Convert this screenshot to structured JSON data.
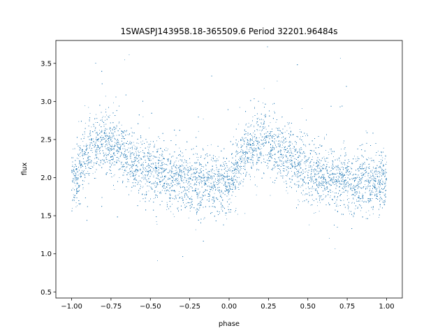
{
  "chart_data": {
    "type": "scatter",
    "title": "1SWASPJ143958.18-365509.6 Period 32201.96484s",
    "xlabel": "phase",
    "ylabel": "flux",
    "xlim": [
      -1.1,
      1.1
    ],
    "ylim": [
      0.42,
      3.8
    ],
    "x_ticks": [
      -1.0,
      -0.75,
      -0.5,
      -0.25,
      0.0,
      0.25,
      0.5,
      0.75,
      1.0
    ],
    "x_tick_labels": [
      "−1.00",
      "−0.75",
      "−0.50",
      "−0.25",
      "0.00",
      "0.25",
      "0.50",
      "0.75",
      "1.00"
    ],
    "y_ticks": [
      0.5,
      1.0,
      1.5,
      2.0,
      2.5,
      3.0,
      3.5
    ],
    "y_tick_labels": [
      "0.5",
      "1.0",
      "1.5",
      "2.0",
      "2.5",
      "3.0",
      "3.5"
    ],
    "grid": false,
    "point_color": "#1f77b4",
    "series": [
      {
        "x": [
          -1.0,
          -0.95,
          -0.9,
          -0.85,
          -0.8,
          -0.75,
          -0.7,
          -0.65,
          -0.6,
          -0.55,
          -0.5,
          -0.45,
          -0.4,
          -0.35,
          -0.3,
          -0.25,
          -0.2,
          -0.15,
          -0.1,
          -0.05,
          0.0,
          0.05,
          0.1,
          0.15,
          0.2,
          0.25,
          0.3,
          0.35,
          0.4,
          0.45,
          0.5,
          0.55,
          0.6,
          0.65,
          0.7,
          0.75,
          0.8,
          0.85,
          0.9,
          0.95,
          1.0
        ],
        "y": [
          1.95,
          2.1,
          2.3,
          2.42,
          2.48,
          2.45,
          2.38,
          2.3,
          2.22,
          2.16,
          2.1,
          2.06,
          2.02,
          2.0,
          1.98,
          1.96,
          1.94,
          1.93,
          1.92,
          1.93,
          1.95,
          2.1,
          2.3,
          2.42,
          2.48,
          2.45,
          2.38,
          2.3,
          2.22,
          2.16,
          2.1,
          2.06,
          2.02,
          2.0,
          1.98,
          1.96,
          1.94,
          1.93,
          1.92,
          1.93,
          1.95
        ]
      }
    ]
  }
}
